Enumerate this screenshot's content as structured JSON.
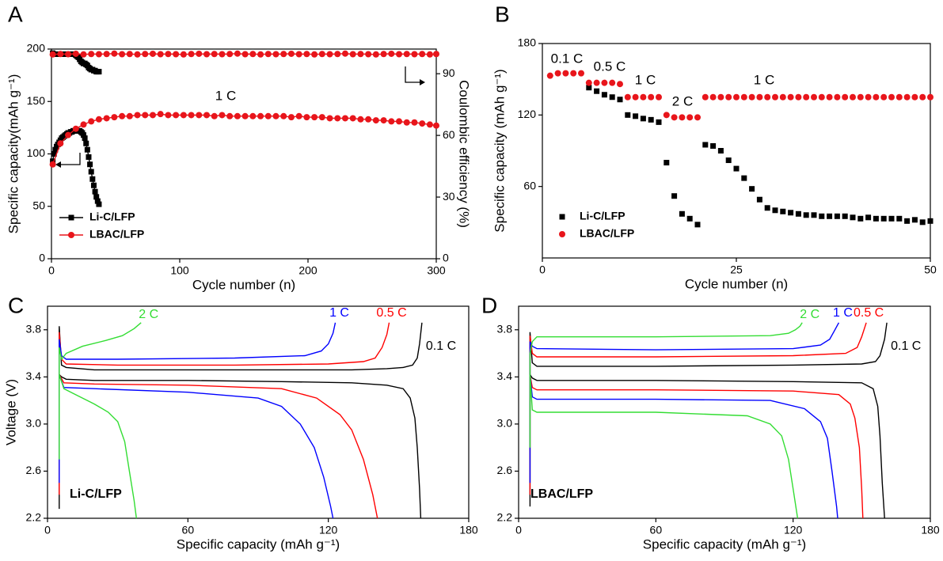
{
  "chart_data": [
    {
      "type": "line",
      "panel": "A",
      "xlabel": "Cycle number (n)",
      "ylabel": "Specific capacity(mAh g⁻¹)",
      "y2label": "Coulombic efficiency (%)",
      "xlim": [
        0,
        300
      ],
      "xticks": [
        0,
        100,
        200,
        300
      ],
      "ylim": [
        0,
        200
      ],
      "yticks": [
        0,
        50,
        100,
        150,
        200
      ],
      "y2lim": [
        0,
        102
      ],
      "y2ticks": [
        0,
        30,
        60,
        90
      ],
      "legend": "lower left",
      "annotations": [
        "1 C"
      ],
      "series": [
        {
          "name": "Li-C/LFP",
          "color": "#000000",
          "marker": "square",
          "x": [
            1,
            2,
            3,
            4,
            5,
            6,
            7,
            8,
            9,
            10,
            11,
            12,
            13,
            14,
            15,
            16,
            17,
            18,
            19,
            20,
            21,
            22,
            23,
            24,
            25,
            26,
            27,
            28,
            29,
            30,
            31,
            32,
            33,
            34,
            35,
            36,
            37
          ],
          "values": [
            93,
            100,
            104,
            107,
            109,
            111,
            113,
            115,
            116,
            117,
            118,
            119,
            120,
            120,
            121,
            121,
            122,
            122,
            122,
            122,
            122,
            122,
            121,
            120,
            118,
            115,
            110,
            104,
            97,
            90,
            83,
            76,
            70,
            64,
            59,
            55,
            52
          ],
          "efficiency": [
            100,
            99.5,
            99.5,
            99.5,
            99.5,
            99.5,
            99.5,
            99.5,
            99.5,
            99.5,
            99.5,
            99.5,
            99.5,
            99.5,
            99.5,
            99.5,
            99.5,
            99.5,
            99,
            98.5,
            98,
            97,
            96,
            95.5,
            95,
            95,
            94.5,
            94,
            93,
            92.5,
            92,
            92,
            91.5,
            91.5,
            91,
            91,
            91
          ]
        },
        {
          "name": "LBAC/LFP",
          "color": "#e8151b",
          "marker": "circle",
          "x": [
            1,
            7,
            13,
            19,
            25,
            31,
            37,
            43,
            49,
            55,
            61,
            67,
            73,
            79,
            85,
            91,
            97,
            103,
            109,
            115,
            121,
            127,
            133,
            139,
            145,
            151,
            157,
            163,
            169,
            175,
            181,
            187,
            193,
            199,
            205,
            211,
            217,
            223,
            229,
            235,
            241,
            247,
            253,
            259,
            265,
            271,
            277,
            283,
            289,
            295,
            300
          ],
          "values": [
            90,
            110,
            118,
            124,
            128,
            131,
            133,
            134,
            135,
            136,
            136,
            137,
            137,
            137,
            138,
            137,
            137,
            137,
            137,
            137,
            137,
            136,
            137,
            136,
            136,
            136,
            136,
            136,
            136,
            136,
            136,
            135,
            136,
            135,
            135,
            135,
            134,
            134,
            134,
            134,
            133,
            133,
            132,
            132,
            131,
            131,
            130,
            130,
            129,
            128,
            127
          ],
          "efficiency": [
            99.4,
            99.6,
            99.5,
            99.7,
            99.4,
            99.6,
            99.5,
            99.6,
            99.8,
            99.5,
            99.6,
            99.4,
            99.6,
            99.7,
            99.5,
            99.6,
            99.5,
            99.4,
            99.6,
            99.7,
            99.5,
            99.6,
            99.5,
            99.6,
            99.8,
            99.5,
            99.6,
            99.4,
            99.6,
            99.5,
            99.6,
            99.7,
            99.5,
            99.6,
            99.4,
            99.6,
            99.5,
            99.6,
            99.8,
            99.5,
            99.6,
            99.5,
            99.4,
            99.6,
            99.7,
            99.5,
            99.6,
            99.5,
            99.6,
            99.4,
            99.6
          ]
        }
      ]
    },
    {
      "type": "scatter",
      "panel": "B",
      "xlabel": "Cycle number (n)",
      "ylabel": "Specific capacity (mAh g⁻¹)",
      "xlim": [
        0,
        50
      ],
      "xticks": [
        0,
        25,
        50
      ],
      "ylim": [
        0,
        180
      ],
      "yticks": [
        60,
        120,
        180
      ],
      "legend": "lower left",
      "annotations": [
        "0.1 C",
        "0.5 C",
        "1 C",
        "2 C",
        "1 C"
      ],
      "series": [
        {
          "name": "Li-C/LFP",
          "color": "#000000",
          "marker": "square",
          "x": [
            6,
            7,
            8,
            9,
            10,
            11,
            12,
            13,
            14,
            15,
            16,
            17,
            18,
            19,
            20,
            21,
            22,
            23,
            24,
            25,
            26,
            27,
            28,
            29,
            30,
            31,
            32,
            33,
            34,
            35,
            36,
            37,
            38,
            39,
            40,
            41,
            42,
            43,
            44,
            45,
            46,
            47,
            48,
            49,
            50
          ],
          "values": [
            143,
            140,
            137,
            135,
            133,
            120,
            119,
            117,
            116,
            114,
            80,
            52,
            37,
            33,
            28,
            95,
            94,
            90,
            82,
            75,
            67,
            58,
            49,
            42,
            40,
            39,
            38,
            37,
            36,
            36,
            35,
            35,
            35,
            35,
            34,
            33,
            34,
            33,
            33,
            33,
            33,
            31,
            32,
            30,
            31
          ]
        },
        {
          "name": "LBAC/LFP",
          "color": "#e8151b",
          "marker": "circle",
          "x": [
            1,
            2,
            3,
            4,
            5,
            6,
            7,
            8,
            9,
            10,
            11,
            12,
            13,
            14,
            15,
            16,
            17,
            18,
            19,
            20,
            21,
            22,
            23,
            24,
            25,
            26,
            27,
            28,
            29,
            30,
            31,
            32,
            33,
            34,
            35,
            36,
            37,
            38,
            39,
            40,
            41,
            42,
            43,
            44,
            45,
            46,
            47,
            48,
            49,
            50
          ],
          "values": [
            153,
            155,
            155,
            155,
            155,
            147,
            147,
            147,
            147,
            146,
            135,
            135,
            135,
            135,
            135,
            120,
            118,
            118,
            118,
            118,
            135,
            135,
            135,
            135,
            135,
            135,
            135,
            135,
            135,
            135,
            135,
            135,
            135,
            135,
            135,
            135,
            135,
            135,
            135,
            135,
            135,
            135,
            135,
            135,
            135,
            135,
            135,
            135,
            135,
            135
          ]
        }
      ]
    },
    {
      "type": "line",
      "panel": "C",
      "xlabel": "Specific capacity (mAh g⁻¹)",
      "ylabel": "Voltage (V)",
      "label": "Li-C/LFP",
      "xlim": [
        0,
        180
      ],
      "xticks": [
        0,
        60,
        120,
        180
      ],
      "ylim": [
        2.2,
        4.0
      ],
      "yticks": [
        2.2,
        2.6,
        {
          "value": 3,
          "label": "3.0"
        },
        3.4,
        3.8
      ],
      "series": [
        {
          "name": "0.1 C",
          "color": "#000000",
          "charge": {
            "x": [
              5,
              5,
              6,
              8,
              20,
              60,
              100,
              130,
              145,
              152,
              156,
              158,
              159,
              160
            ],
            "values": [
              2.28,
              3.83,
              3.5,
              3.48,
              3.46,
              3.46,
              3.46,
              3.46,
              3.47,
              3.48,
              3.5,
              3.56,
              3.68,
              3.86
            ]
          },
          "discharge": {
            "x": [
              5,
              6,
              8,
              20,
              60,
              100,
              130,
              145,
              152,
              155,
              157,
              158,
              159,
              159.5
            ],
            "values": [
              3.42,
              3.4,
              3.38,
              3.37,
              3.37,
              3.36,
              3.35,
              3.33,
              3.3,
              3.22,
              3.05,
              2.8,
              2.45,
              2.2
            ]
          }
        },
        {
          "name": "0.5 C",
          "color": "#ff0000",
          "charge": {
            "x": [
              5,
              5,
              6,
              8,
              30,
              80,
              120,
              135,
              140,
              143,
              145,
              146
            ],
            "values": [
              2.4,
              3.78,
              3.55,
              3.51,
              3.5,
              3.5,
              3.51,
              3.53,
              3.56,
              3.65,
              3.76,
              3.86
            ]
          },
          "discharge": {
            "x": [
              5,
              7,
              20,
              60,
              100,
              115,
              125,
              130,
              135,
              139,
              141
            ],
            "values": [
              3.42,
              3.35,
              3.34,
              3.33,
              3.3,
              3.22,
              3.08,
              2.95,
              2.7,
              2.4,
              2.2
            ]
          }
        },
        {
          "name": "1 C",
          "color": "#0000ff",
          "charge": {
            "x": [
              5,
              5,
              6,
              8,
              30,
              80,
              110,
              117,
              120,
              122,
              123
            ],
            "values": [
              2.5,
              3.72,
              3.58,
              3.55,
              3.55,
              3.56,
              3.58,
              3.62,
              3.68,
              3.77,
              3.86
            ]
          },
          "discharge": {
            "x": [
              5,
              7,
              20,
              60,
              90,
              100,
              108,
              114,
              118,
              121,
              122
            ],
            "values": [
              3.42,
              3.31,
              3.3,
              3.27,
              3.22,
              3.15,
              3.0,
              2.8,
              2.55,
              2.3,
              2.2
            ]
          }
        },
        {
          "name": "2 C",
          "color": "#33dd33",
          "charge": {
            "x": [
              5,
              5,
              6,
              8,
              15,
              25,
              32,
              37,
              40
            ],
            "values": [
              2.7,
              3.65,
              3.55,
              3.6,
              3.66,
              3.71,
              3.75,
              3.81,
              3.86
            ]
          },
          "discharge": {
            "x": [
              5,
              7,
              12,
              20,
              26,
              30,
              33,
              35,
              37,
              38
            ],
            "values": [
              3.42,
              3.3,
              3.25,
              3.17,
              3.1,
              3.02,
              2.85,
              2.6,
              2.35,
              2.2
            ]
          }
        }
      ]
    },
    {
      "type": "line",
      "panel": "D",
      "xlabel": "Specific capacity (mAh g⁻¹)",
      "label": "LBAC/LFP",
      "xlim": [
        0,
        180
      ],
      "xticks": [
        0,
        60,
        120,
        180
      ],
      "ylim": [
        2.2,
        4.0
      ],
      "yticks": [
        2.2,
        2.6,
        {
          "value": 3,
          "label": "3.0"
        },
        3.4,
        3.8
      ],
      "series": [
        {
          "name": "0.1 C",
          "color": "#000000",
          "charge": {
            "x": [
              5,
              5,
              6,
              8,
              60,
              120,
              150,
              156,
              158,
              160,
              161
            ],
            "values": [
              2.3,
              3.78,
              3.52,
              3.49,
              3.49,
              3.5,
              3.51,
              3.53,
              3.58,
              3.72,
              3.86
            ]
          },
          "discharge": {
            "x": [
              5,
              6,
              8,
              60,
              120,
              150,
              155,
              157,
              158,
              159,
              160
            ],
            "values": [
              3.42,
              3.39,
              3.37,
              3.37,
              3.36,
              3.35,
              3.3,
              3.15,
              2.9,
              2.5,
              2.2
            ]
          }
        },
        {
          "name": "0.5 C",
          "color": "#ff0000",
          "charge": {
            "x": [
              5,
              5,
              6,
              8,
              60,
              120,
              143,
              148,
              150,
              152
            ],
            "values": [
              2.4,
              3.75,
              3.6,
              3.57,
              3.57,
              3.58,
              3.6,
              3.65,
              3.74,
              3.86
            ]
          },
          "discharge": {
            "x": [
              5,
              6,
              8,
              60,
              120,
              140,
              145,
              147,
              149,
              150,
              150.5
            ],
            "values": [
              3.42,
              3.31,
              3.29,
              3.29,
              3.28,
              3.25,
              3.17,
              3.05,
              2.8,
              2.45,
              2.2
            ]
          }
        },
        {
          "name": "1 C",
          "color": "#0000ff",
          "charge": {
            "x": [
              5,
              5,
              6,
              8,
              60,
              120,
              132,
              136,
              138,
              140
            ],
            "values": [
              2.5,
              3.7,
              3.66,
              3.64,
              3.63,
              3.64,
              3.67,
              3.72,
              3.79,
              3.86
            ]
          },
          "discharge": {
            "x": [
              5,
              6,
              8,
              60,
              110,
              125,
              132,
              135,
              137,
              139,
              139.5
            ],
            "values": [
              3.42,
              3.23,
              3.21,
              3.21,
              3.2,
              3.13,
              3.02,
              2.88,
              2.6,
              2.3,
              2.2
            ]
          }
        },
        {
          "name": "2 C",
          "color": "#33dd33",
          "charge": {
            "x": [
              5,
              5,
              6,
              8,
              60,
              110,
              118,
              121,
              123,
              124
            ],
            "values": [
              2.8,
              3.6,
              3.7,
              3.74,
              3.74,
              3.75,
              3.77,
              3.8,
              3.83,
              3.86
            ]
          },
          "discharge": {
            "x": [
              5,
              6,
              8,
              60,
              100,
              110,
              115,
              118,
              120,
              122
            ],
            "values": [
              3.42,
              3.12,
              3.1,
              3.1,
              3.07,
              3.0,
              2.9,
              2.7,
              2.45,
              2.2
            ]
          }
        }
      ]
    }
  ]
}
